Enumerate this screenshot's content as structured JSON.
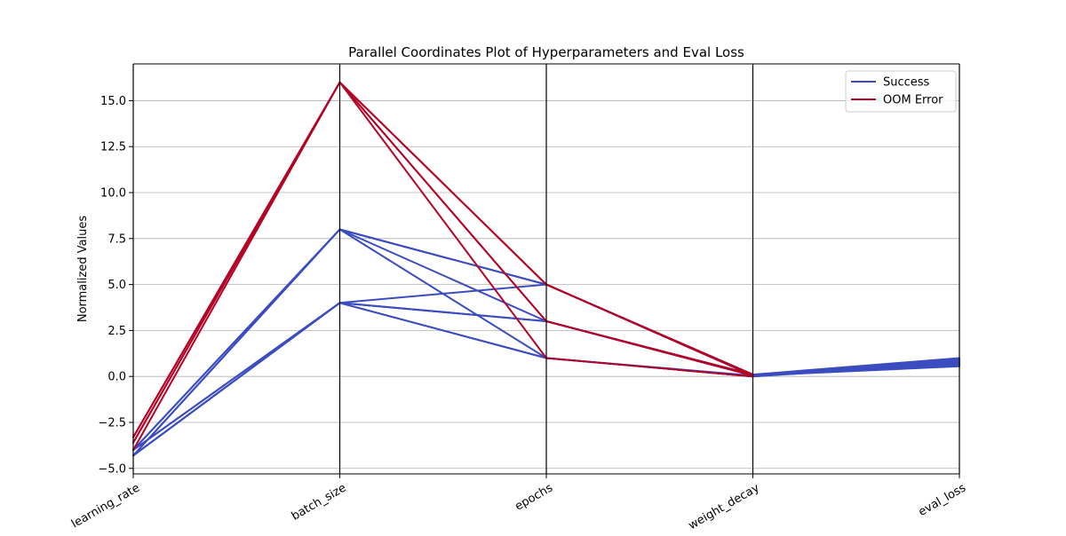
{
  "chart_data": {
    "type": "parallel_coordinates",
    "title": "Parallel Coordinates Plot of Hyperparameters and Eval Loss",
    "ylabel": "Normalized Values",
    "dimensions": [
      "learning_rate",
      "batch_size",
      "epochs",
      "weight_decay",
      "eval_loss"
    ],
    "ylim": [
      -5.3,
      17
    ],
    "yticks": [
      -5.0,
      -2.5,
      0.0,
      2.5,
      5.0,
      7.5,
      10.0,
      12.5,
      15.0
    ],
    "ytick_labels": [
      "−5.0",
      "−2.5",
      "0.0",
      "2.5",
      "5.0",
      "7.5",
      "10.0",
      "12.5",
      "15.0"
    ],
    "grid": true,
    "legend_position": "top-right",
    "series": [
      {
        "name": "Success",
        "color": "#3b4cc0",
        "lines": [
          [
            -4.3,
            8,
            5,
            0.1,
            1.0
          ],
          [
            -4.3,
            8,
            3,
            0.05,
            0.93
          ],
          [
            -4.0,
            8,
            1,
            0.0,
            0.85
          ],
          [
            -4.3,
            4,
            5,
            0.1,
            0.8
          ],
          [
            -4.0,
            4,
            3,
            0.05,
            0.75
          ],
          [
            -4.3,
            4,
            1,
            0.0,
            0.7
          ],
          [
            -4.0,
            8,
            5,
            0.05,
            0.65
          ],
          [
            -4.3,
            4,
            3,
            0.1,
            0.6
          ],
          [
            -4.0,
            4,
            1,
            0.05,
            0.55
          ]
        ]
      },
      {
        "name": "OOM Error",
        "color": "#b40426",
        "lines": [
          [
            -3.3,
            16,
            5,
            0.1
          ],
          [
            -3.6,
            16,
            3,
            0.05
          ],
          [
            -4.0,
            16,
            1,
            0.0
          ],
          [
            -3.3,
            16,
            5,
            0.05
          ],
          [
            -3.6,
            16,
            3,
            0.1
          ]
        ]
      }
    ]
  }
}
